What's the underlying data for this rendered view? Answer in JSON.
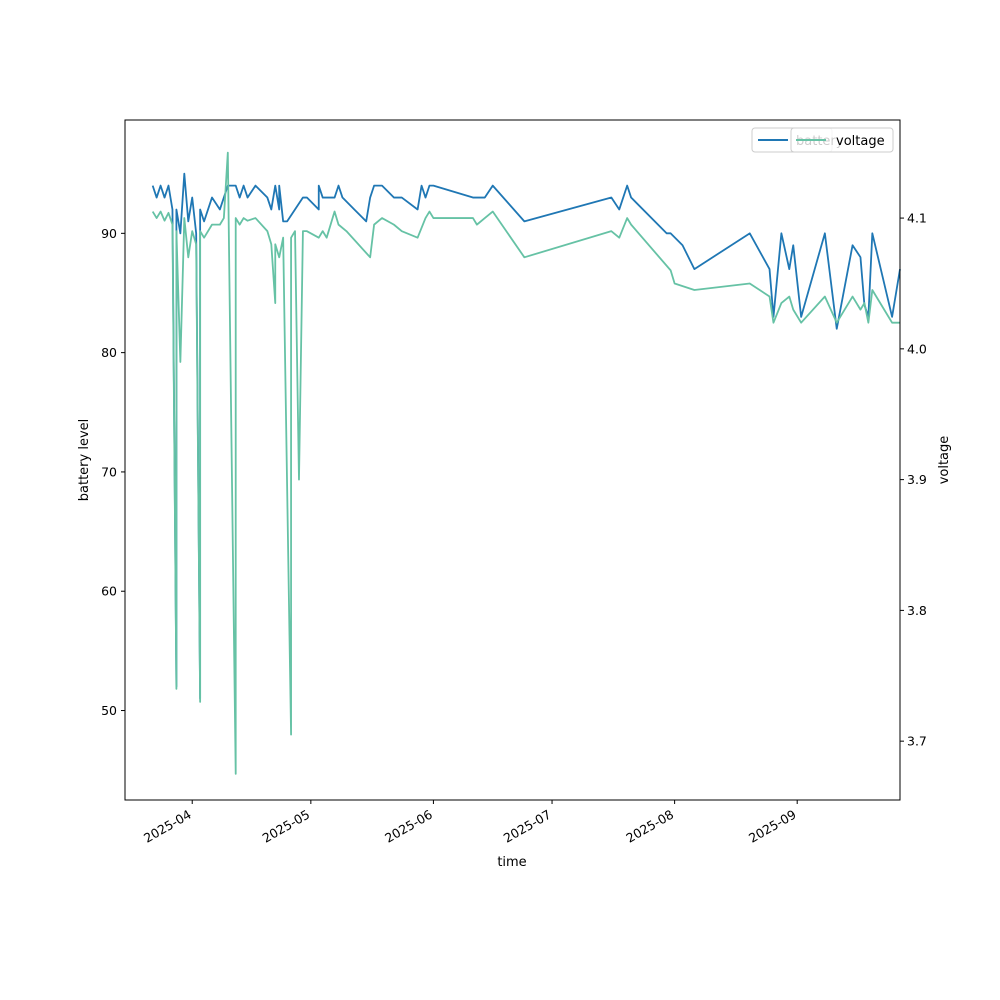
{
  "chart_data": {
    "type": "line",
    "xlabel": "time",
    "ylabel": "battery level",
    "ylabel_right": "voltage",
    "x_ticks": [
      "2025-04",
      "2025-05",
      "2025-06",
      "2025-07",
      "2025-08",
      "2025-09"
    ],
    "y_ticks_left": [
      50,
      60,
      70,
      80,
      90
    ],
    "y_ticks_right": [
      "3.7",
      "3.8",
      "3.9",
      "4.0",
      "4.1"
    ],
    "ylim_left": [
      42.5,
      99.5
    ],
    "ylim_right": [
      3.655,
      4.175
    ],
    "xlim": [
      "2025-03-15",
      "2025-09-27"
    ],
    "grid": false,
    "legend_placement": "top-right",
    "colors": {
      "battery": "#1f77b4",
      "voltage": "#66c2a5"
    },
    "series": [
      {
        "name": "battery",
        "axis": "left",
        "points": [
          [
            "2025-03-22",
            94
          ],
          [
            "2025-03-23",
            93
          ],
          [
            "2025-03-24",
            94
          ],
          [
            "2025-03-25",
            93
          ],
          [
            "2025-03-26",
            94
          ],
          [
            "2025-03-27",
            92
          ],
          [
            "2025-03-28",
            52
          ],
          [
            "2025-03-28",
            92
          ],
          [
            "2025-03-29",
            90
          ],
          [
            "2025-03-30",
            95
          ],
          [
            "2025-03-31",
            91
          ],
          [
            "2025-04-01",
            93
          ],
          [
            "2025-04-02",
            90
          ],
          [
            "2025-04-03",
            51
          ],
          [
            "2025-04-03",
            92
          ],
          [
            "2025-04-04",
            91
          ],
          [
            "2025-04-06",
            93
          ],
          [
            "2025-04-08",
            92
          ],
          [
            "2025-04-09",
            93
          ],
          [
            "2025-04-10",
            94
          ],
          [
            "2025-04-12",
            94
          ],
          [
            "2025-04-13",
            93
          ],
          [
            "2025-04-14",
            94
          ],
          [
            "2025-04-15",
            93
          ],
          [
            "2025-04-17",
            94
          ],
          [
            "2025-04-20",
            93
          ],
          [
            "2025-04-21",
            92
          ],
          [
            "2025-04-22",
            94
          ],
          [
            "2025-04-23",
            92
          ],
          [
            "2025-04-23",
            94
          ],
          [
            "2025-04-24",
            91
          ],
          [
            "2025-04-25",
            91
          ],
          [
            "2025-04-29",
            93
          ],
          [
            "2025-04-30",
            93
          ],
          [
            "2025-05-03",
            92
          ],
          [
            "2025-05-03",
            94
          ],
          [
            "2025-05-04",
            93
          ],
          [
            "2025-05-07",
            93
          ],
          [
            "2025-05-08",
            94
          ],
          [
            "2025-05-09",
            93
          ],
          [
            "2025-05-12",
            92
          ],
          [
            "2025-05-15",
            91
          ],
          [
            "2025-05-16",
            93
          ],
          [
            "2025-05-17",
            94
          ],
          [
            "2025-05-19",
            94
          ],
          [
            "2025-05-22",
            93
          ],
          [
            "2025-05-24",
            93
          ],
          [
            "2025-05-28",
            92
          ],
          [
            "2025-05-29",
            94
          ],
          [
            "2025-05-30",
            93
          ],
          [
            "2025-05-31",
            94
          ],
          [
            "2025-06-01",
            94
          ],
          [
            "2025-06-11",
            93
          ],
          [
            "2025-06-14",
            93
          ],
          [
            "2025-06-16",
            94
          ],
          [
            "2025-06-24",
            91
          ],
          [
            "2025-07-16",
            93
          ],
          [
            "2025-07-18",
            92
          ],
          [
            "2025-07-20",
            94
          ],
          [
            "2025-07-21",
            93
          ],
          [
            "2025-07-30",
            90
          ],
          [
            "2025-07-31",
            90
          ],
          [
            "2025-08-03",
            89
          ],
          [
            "2025-08-06",
            87
          ],
          [
            "2025-08-20",
            90
          ],
          [
            "2025-08-25",
            87
          ],
          [
            "2025-08-26",
            83
          ],
          [
            "2025-08-28",
            90
          ],
          [
            "2025-08-30",
            87
          ],
          [
            "2025-08-31",
            89
          ],
          [
            "2025-09-02",
            83
          ],
          [
            "2025-09-08",
            90
          ],
          [
            "2025-09-11",
            82
          ],
          [
            "2025-09-15",
            89
          ],
          [
            "2025-09-17",
            88
          ],
          [
            "2025-09-18",
            84
          ],
          [
            "2025-09-19",
            83
          ],
          [
            "2025-09-20",
            90
          ],
          [
            "2025-09-25",
            83
          ],
          [
            "2025-09-27",
            87
          ]
        ]
      },
      {
        "name": "voltage",
        "axis": "right",
        "points": [
          [
            "2025-03-22",
            4.105
          ],
          [
            "2025-03-23",
            4.1
          ],
          [
            "2025-03-24",
            4.105
          ],
          [
            "2025-03-25",
            4.098
          ],
          [
            "2025-03-26",
            4.104
          ],
          [
            "2025-03-27",
            4.095
          ],
          [
            "2025-03-28",
            3.74
          ],
          [
            "2025-03-28",
            4.09
          ],
          [
            "2025-03-29",
            3.99
          ],
          [
            "2025-03-30",
            4.1
          ],
          [
            "2025-03-31",
            4.07
          ],
          [
            "2025-04-01",
            4.09
          ],
          [
            "2025-04-02",
            4.08
          ],
          [
            "2025-04-03",
            3.73
          ],
          [
            "2025-04-03",
            4.09
          ],
          [
            "2025-04-04",
            4.085
          ],
          [
            "2025-04-06",
            4.095
          ],
          [
            "2025-04-08",
            4.095
          ],
          [
            "2025-04-09",
            4.1
          ],
          [
            "2025-04-10",
            4.15
          ],
          [
            "2025-04-12",
            3.675
          ],
          [
            "2025-04-12",
            4.1
          ],
          [
            "2025-04-13",
            4.095
          ],
          [
            "2025-04-14",
            4.1
          ],
          [
            "2025-04-15",
            4.098
          ],
          [
            "2025-04-17",
            4.1
          ],
          [
            "2025-04-20",
            4.09
          ],
          [
            "2025-04-21",
            4.08
          ],
          [
            "2025-04-22",
            4.035
          ],
          [
            "2025-04-22",
            4.08
          ],
          [
            "2025-04-23",
            4.07
          ],
          [
            "2025-04-24",
            4.085
          ],
          [
            "2025-04-26",
            3.705
          ],
          [
            "2025-04-26",
            4.085
          ],
          [
            "2025-04-27",
            4.09
          ],
          [
            "2025-04-28",
            3.9
          ],
          [
            "2025-04-29",
            4.09
          ],
          [
            "2025-04-30",
            4.09
          ],
          [
            "2025-05-03",
            4.085
          ],
          [
            "2025-05-04",
            4.09
          ],
          [
            "2025-05-05",
            4.085
          ],
          [
            "2025-05-07",
            4.105
          ],
          [
            "2025-05-08",
            4.095
          ],
          [
            "2025-05-10",
            4.09
          ],
          [
            "2025-05-16",
            4.07
          ],
          [
            "2025-05-17",
            4.095
          ],
          [
            "2025-05-19",
            4.1
          ],
          [
            "2025-05-22",
            4.095
          ],
          [
            "2025-05-24",
            4.09
          ],
          [
            "2025-05-28",
            4.085
          ],
          [
            "2025-05-30",
            4.1
          ],
          [
            "2025-05-31",
            4.105
          ],
          [
            "2025-06-01",
            4.1
          ],
          [
            "2025-06-11",
            4.1
          ],
          [
            "2025-06-12",
            4.095
          ],
          [
            "2025-06-14",
            4.1
          ],
          [
            "2025-06-16",
            4.105
          ],
          [
            "2025-06-24",
            4.07
          ],
          [
            "2025-07-16",
            4.09
          ],
          [
            "2025-07-18",
            4.085
          ],
          [
            "2025-07-20",
            4.1
          ],
          [
            "2025-07-21",
            4.095
          ],
          [
            "2025-07-31",
            4.06
          ],
          [
            "2025-08-01",
            4.05
          ],
          [
            "2025-08-06",
            4.045
          ],
          [
            "2025-08-20",
            4.05
          ],
          [
            "2025-08-25",
            4.04
          ],
          [
            "2025-08-26",
            4.02
          ],
          [
            "2025-08-28",
            4.035
          ],
          [
            "2025-08-30",
            4.04
          ],
          [
            "2025-08-31",
            4.03
          ],
          [
            "2025-09-02",
            4.02
          ],
          [
            "2025-09-08",
            4.04
          ],
          [
            "2025-09-11",
            4.02
          ],
          [
            "2025-09-15",
            4.04
          ],
          [
            "2025-09-17",
            4.03
          ],
          [
            "2025-09-18",
            4.035
          ],
          [
            "2025-09-19",
            4.02
          ],
          [
            "2025-09-20",
            4.045
          ],
          [
            "2025-09-25",
            4.02
          ],
          [
            "2025-09-27",
            4.02
          ]
        ]
      }
    ]
  }
}
